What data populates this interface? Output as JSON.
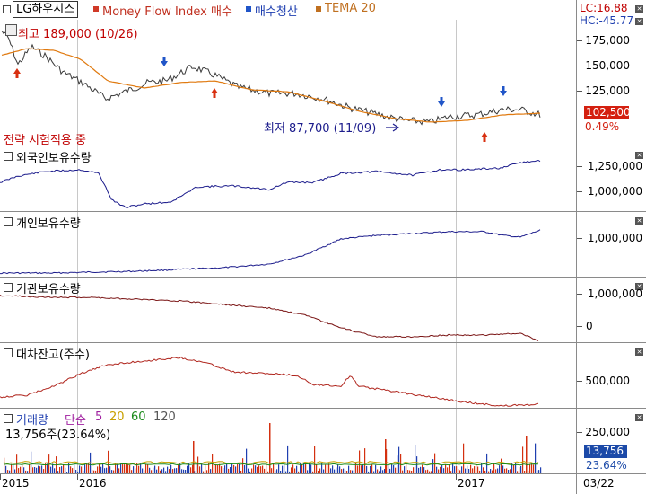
{
  "header": {
    "stock_name": "LG하우시스",
    "indicator1": "Money Flow Index 매수",
    "indicator2": "매수청산",
    "indicator3": "TEMA 20",
    "lc": "LC:16.88",
    "hc": "HC:-45.77"
  },
  "price_panel": {
    "high_label": "최고 189,000 (10/26)",
    "low_label": "최저 87,700 (11/09)",
    "strategy_label": "전략 시험적용 중",
    "y_ticks": [
      "175,000",
      "150,000",
      "125,000"
    ],
    "current_price": "102,500",
    "change_pct": "0.49%"
  },
  "foreign_panel": {
    "title": "외국인보유수량",
    "y_ticks": [
      "1,250,000",
      "1,000,000"
    ]
  },
  "individual_panel": {
    "title": "개인보유수량",
    "y_ticks": [
      "1,000,000"
    ]
  },
  "institution_panel": {
    "title": "기관보유수량",
    "y_ticks": [
      "1,000,000",
      "0"
    ]
  },
  "lending_panel": {
    "title": "대차잔고(주수)",
    "y_ticks": [
      "500,000"
    ]
  },
  "volume_panel": {
    "title": "거래량",
    "ma_label": "단순",
    "ma_periods": [
      "5",
      "20",
      "60",
      "120"
    ],
    "value_label": "13,756주(23.64%)",
    "y_ticks": [
      "250,000"
    ],
    "current_volume": "13,756",
    "current_pct": "23.64%"
  },
  "x_axis": {
    "labels": [
      "2015",
      "2016",
      "2017"
    ],
    "date_label": "03/22"
  },
  "colors": {
    "price": "#3a3a3a",
    "tema": "#e07a10",
    "foreign": "#1c1c8c",
    "individual": "#1c1c8c",
    "institution": "#7a1414",
    "lending": "#b0261e",
    "buy_arrow": "#2055c8",
    "sell_arrow": "#d83010"
  }
}
